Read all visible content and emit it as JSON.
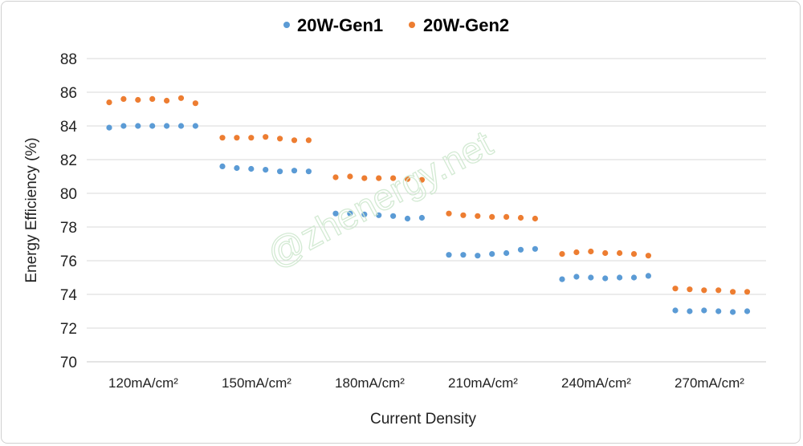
{
  "chart_data": {
    "type": "scatter",
    "xlabel": "Current Density",
    "ylabel": "Energy Efficiency (%)",
    "ylim": [
      70,
      88
    ],
    "yticks": [
      70,
      72,
      74,
      76,
      78,
      80,
      82,
      84,
      86,
      88
    ],
    "grid": true,
    "legend_position": "top",
    "categories": [
      "120mA/cm²",
      "150mA/cm²",
      "180mA/cm²",
      "210mA/cm²",
      "240mA/cm²",
      "270mA/cm²"
    ],
    "series": [
      {
        "name": "20W-Gen1",
        "color": "#5b9bd5",
        "values": [
          [
            83.9,
            84.0,
            84.0,
            84.0,
            84.0,
            84.0,
            84.0
          ],
          [
            81.6,
            81.5,
            81.45,
            81.4,
            81.3,
            81.35,
            81.3
          ],
          [
            78.8,
            78.8,
            78.75,
            78.7,
            78.65,
            78.5,
            78.55
          ],
          [
            76.35,
            76.35,
            76.3,
            76.4,
            76.45,
            76.65,
            76.7
          ],
          [
            74.9,
            75.05,
            75.0,
            74.95,
            75.0,
            75.0,
            75.1
          ],
          [
            73.05,
            73.0,
            73.05,
            73.0,
            72.95,
            73.0
          ]
        ]
      },
      {
        "name": "20W-Gen2",
        "color": "#ed7d31",
        "values": [
          [
            85.4,
            85.6,
            85.55,
            85.6,
            85.5,
            85.65,
            85.35
          ],
          [
            83.3,
            83.3,
            83.3,
            83.35,
            83.25,
            83.15,
            83.15
          ],
          [
            80.95,
            81.0,
            80.9,
            80.9,
            80.9,
            80.85,
            80.8
          ],
          [
            78.8,
            78.7,
            78.65,
            78.6,
            78.6,
            78.55,
            78.5
          ],
          [
            76.4,
            76.5,
            76.55,
            76.45,
            76.45,
            76.4,
            76.3
          ],
          [
            74.35,
            74.3,
            74.25,
            74.25,
            74.15,
            74.15
          ]
        ]
      }
    ]
  },
  "watermark": "@zhenergy.net"
}
